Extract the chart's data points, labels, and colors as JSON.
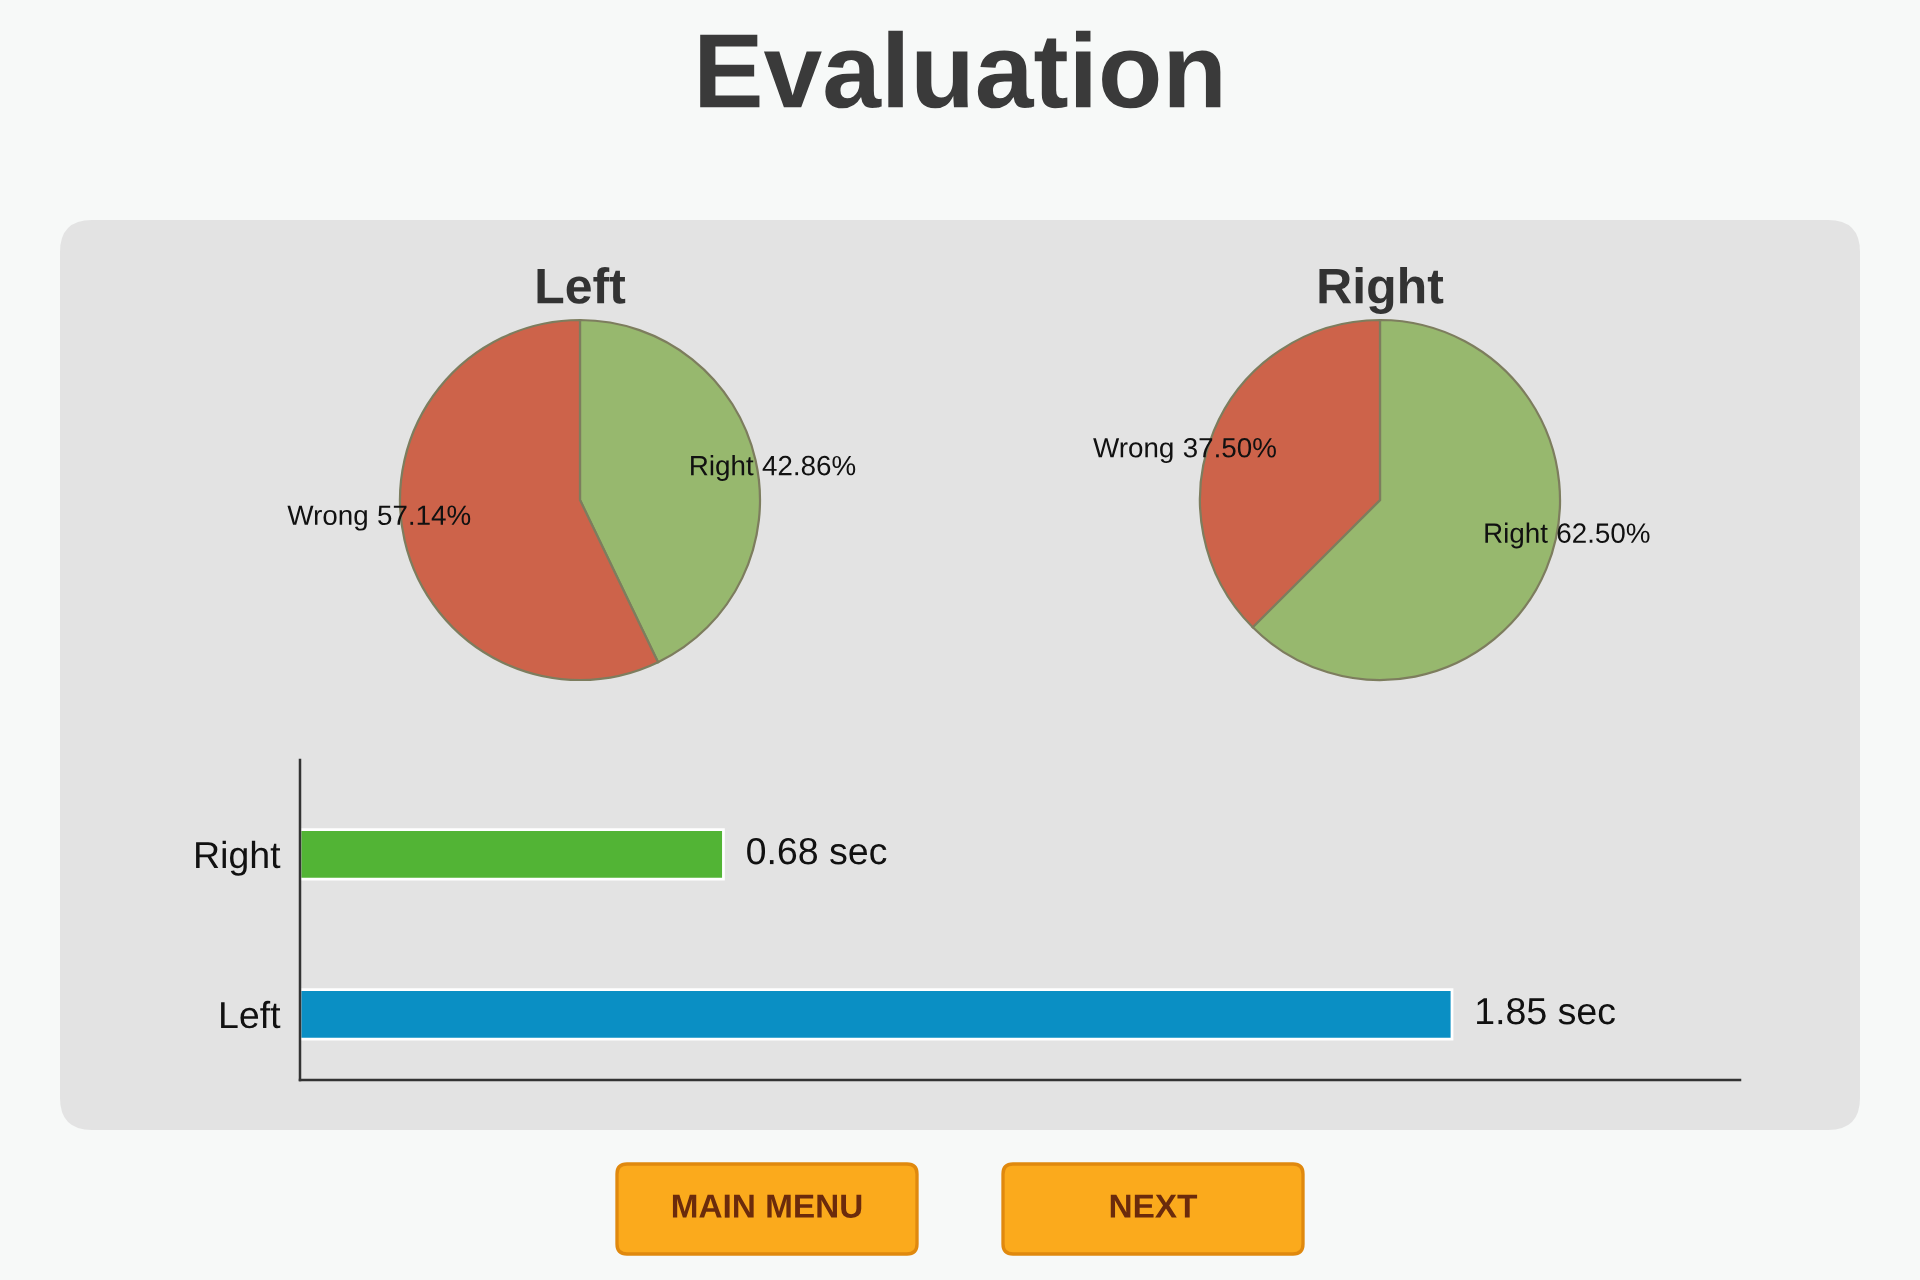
{
  "chart_data": [
    {
      "type": "other",
      "title": "Evaluation"
    },
    {
      "type": "pie",
      "title": "Left",
      "categories": [
        "Right",
        "Wrong"
      ],
      "values": [
        42.86,
        57.14
      ],
      "colors": [
        "#97b86e",
        "#cd634a"
      ],
      "value_labels": [
        "42.86%",
        "57.14%"
      ]
    },
    {
      "type": "pie",
      "title": "Right",
      "categories": [
        "Right",
        "Wrong"
      ],
      "values": [
        62.5,
        37.5
      ],
      "colors": [
        "#97b86e",
        "#cd634a"
      ],
      "value_labels": [
        "62.50%",
        "37.50%"
      ]
    },
    {
      "type": "bar",
      "orientation": "horizontal",
      "categories": [
        "Right",
        "Left"
      ],
      "values": [
        0.68,
        1.85
      ],
      "colors": [
        "#52b435",
        "#0a8fc4"
      ],
      "value_labels": [
        "0.68 sec",
        "1.85 sec"
      ],
      "tick_labels": "y"
    },
    {
      "type": "other",
      "annotations": [
        "MAIN MENU",
        "NEXT"
      ]
    }
  ]
}
